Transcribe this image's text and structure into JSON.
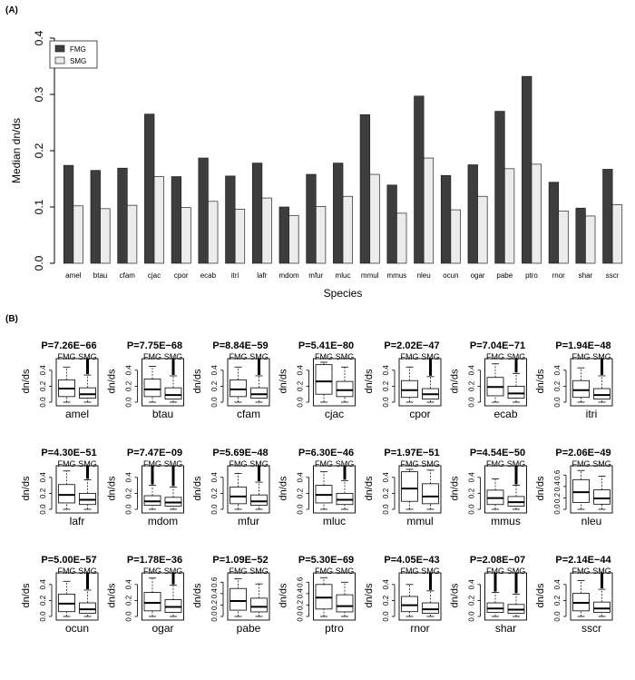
{
  "panel_labels": {
    "a": "(A)",
    "b": "(B)"
  },
  "chart_data": [
    {
      "type": "bar",
      "title": "",
      "xlabel": "Species",
      "ylabel": "Median dn/ds",
      "ylim": [
        0,
        0.4
      ],
      "yticks": [
        "0.0",
        "0.1",
        "0.2",
        "0.3",
        "0.4"
      ],
      "legend_position": "top-left",
      "grid": false,
      "categories": [
        "amel",
        "btau",
        "cfam",
        "cjac",
        "cpor",
        "ecab",
        "itri",
        "lafr",
        "mdom",
        "mfur",
        "mluc",
        "mmul",
        "mmus",
        "nleu",
        "ocun",
        "ogar",
        "pabe",
        "ptro",
        "rnor",
        "shar",
        "sscr"
      ],
      "series": [
        {
          "name": "FMG",
          "color": "#3d3d3d",
          "values": [
            0.174,
            0.165,
            0.169,
            0.265,
            0.154,
            0.187,
            0.155,
            0.178,
            0.1,
            0.158,
            0.178,
            0.264,
            0.139,
            0.297,
            0.156,
            0.175,
            0.27,
            0.332,
            0.144,
            0.098,
            0.167
          ]
        },
        {
          "name": "SMG",
          "color": "#ececec",
          "values": [
            0.102,
            0.097,
            0.103,
            0.154,
            0.099,
            0.11,
            0.096,
            0.116,
            0.085,
            0.101,
            0.119,
            0.158,
            0.089,
            0.187,
            0.095,
            0.119,
            0.168,
            0.176,
            0.093,
            0.084,
            0.104
          ]
        }
      ]
    },
    {
      "type": "boxplot",
      "ylabel": "dn/ds",
      "group_labels": [
        "FMG",
        "SMG"
      ],
      "grid": false,
      "panels": [
        {
          "species": "amel",
          "pvalue": "P=7.26E−66",
          "ylim": [
            0,
            0.5
          ],
          "yticks": [
            "0.0",
            "0.2",
            "0.4"
          ],
          "boxes": [
            {
              "whisker_low": 0.0,
              "q1": 0.07,
              "median": 0.17,
              "q3": 0.28,
              "whisker_high": 0.44,
              "outliers": false
            },
            {
              "whisker_low": 0.0,
              "q1": 0.05,
              "median": 0.1,
              "q3": 0.18,
              "whisker_high": 0.34,
              "outliers": true
            }
          ]
        },
        {
          "species": "btau",
          "pvalue": "P=7.75E−68",
          "ylim": [
            0,
            0.5
          ],
          "yticks": [
            "0.0",
            "0.2",
            "0.4"
          ],
          "boxes": [
            {
              "whisker_low": 0.0,
              "q1": 0.07,
              "median": 0.16,
              "q3": 0.29,
              "whisker_high": 0.45,
              "outliers": false
            },
            {
              "whisker_low": 0.0,
              "q1": 0.04,
              "median": 0.09,
              "q3": 0.18,
              "whisker_high": 0.33,
              "outliers": true
            }
          ]
        },
        {
          "species": "cfam",
          "pvalue": "P=8.84E−59",
          "ylim": [
            0,
            0.5
          ],
          "yticks": [
            "0.0",
            "0.2",
            "0.4"
          ],
          "boxes": [
            {
              "whisker_low": 0.0,
              "q1": 0.07,
              "median": 0.16,
              "q3": 0.28,
              "whisker_high": 0.44,
              "outliers": false
            },
            {
              "whisker_low": 0.0,
              "q1": 0.05,
              "median": 0.1,
              "q3": 0.18,
              "whisker_high": 0.33,
              "outliers": true
            }
          ]
        },
        {
          "species": "cjac",
          "pvalue": "P=5.41E−80",
          "ylim": [
            0,
            0.5
          ],
          "yticks": [
            "0.0",
            "0.2",
            "0.4"
          ],
          "boxes": [
            {
              "whisker_low": 0.0,
              "q1": 0.1,
              "median": 0.26,
              "q3": 0.47,
              "whisker_high": 0.5,
              "outliers": false
            },
            {
              "whisker_low": 0.0,
              "q1": 0.07,
              "median": 0.15,
              "q3": 0.26,
              "whisker_high": 0.44,
              "outliers": false
            }
          ]
        },
        {
          "species": "cpor",
          "pvalue": "P=2.02E−47",
          "ylim": [
            0,
            0.5
          ],
          "yticks": [
            "0.0",
            "0.2",
            "0.4"
          ],
          "boxes": [
            {
              "whisker_low": 0.0,
              "q1": 0.06,
              "median": 0.15,
              "q3": 0.27,
              "whisker_high": 0.44,
              "outliers": false
            },
            {
              "whisker_low": 0.0,
              "q1": 0.04,
              "median": 0.1,
              "q3": 0.17,
              "whisker_high": 0.32,
              "outliers": true
            }
          ]
        },
        {
          "species": "ecab",
          "pvalue": "P=7.04E−71",
          "ylim": [
            0,
            0.5
          ],
          "yticks": [
            "0.0",
            "0.2",
            "0.4"
          ],
          "boxes": [
            {
              "whisker_low": 0.0,
              "q1": 0.08,
              "median": 0.19,
              "q3": 0.31,
              "whisker_high": 0.48,
              "outliers": false
            },
            {
              "whisker_low": 0.0,
              "q1": 0.05,
              "median": 0.11,
              "q3": 0.2,
              "whisker_high": 0.36,
              "outliers": true
            }
          ]
        },
        {
          "species": "itri",
          "pvalue": "P=1.94E−48",
          "ylim": [
            0,
            0.5
          ],
          "yticks": [
            "0.0",
            "0.2",
            "0.4"
          ],
          "boxes": [
            {
              "whisker_low": 0.0,
              "q1": 0.06,
              "median": 0.15,
              "q3": 0.27,
              "whisker_high": 0.43,
              "outliers": false
            },
            {
              "whisker_low": 0.0,
              "q1": 0.04,
              "median": 0.09,
              "q3": 0.17,
              "whisker_high": 0.33,
              "outliers": true
            }
          ]
        },
        {
          "species": "lafr",
          "pvalue": "P=4.30E−51",
          "ylim": [
            0,
            0.5
          ],
          "yticks": [
            "0.0",
            "0.2",
            "0.4"
          ],
          "boxes": [
            {
              "whisker_low": 0.0,
              "q1": 0.08,
              "median": 0.18,
              "q3": 0.31,
              "whisker_high": 0.48,
              "outliers": false
            },
            {
              "whisker_low": 0.0,
              "q1": 0.06,
              "median": 0.12,
              "q3": 0.2,
              "whisker_high": 0.37,
              "outliers": true
            }
          ]
        },
        {
          "species": "mdom",
          "pvalue": "P=7.47E−09",
          "ylim": [
            0,
            0.5
          ],
          "yticks": [
            "0.0",
            "0.2",
            "0.4"
          ],
          "boxes": [
            {
              "whisker_low": 0.0,
              "q1": 0.05,
              "median": 0.1,
              "q3": 0.17,
              "whisker_high": 0.3,
              "outliers": true
            },
            {
              "whisker_low": 0.0,
              "q1": 0.04,
              "median": 0.085,
              "q3": 0.15,
              "whisker_high": 0.28,
              "outliers": true
            }
          ]
        },
        {
          "species": "mfur",
          "pvalue": "P=5.69E−48",
          "ylim": [
            0,
            0.5
          ],
          "yticks": [
            "0.0",
            "0.2",
            "0.4"
          ],
          "boxes": [
            {
              "whisker_low": 0.0,
              "q1": 0.07,
              "median": 0.16,
              "q3": 0.28,
              "whisker_high": 0.45,
              "outliers": false
            },
            {
              "whisker_low": 0.0,
              "q1": 0.05,
              "median": 0.1,
              "q3": 0.18,
              "whisker_high": 0.34,
              "outliers": true
            }
          ]
        },
        {
          "species": "mluc",
          "pvalue": "P=6.30E−46",
          "ylim": [
            0,
            0.5
          ],
          "yticks": [
            "0.0",
            "0.2",
            "0.4"
          ],
          "boxes": [
            {
              "whisker_low": 0.0,
              "q1": 0.08,
              "median": 0.18,
              "q3": 0.3,
              "whisker_high": 0.47,
              "outliers": false
            },
            {
              "whisker_low": 0.0,
              "q1": 0.06,
              "median": 0.12,
              "q3": 0.2,
              "whisker_high": 0.36,
              "outliers": true
            }
          ]
        },
        {
          "species": "mmul",
          "pvalue": "P=1.97E−51",
          "ylim": [
            0,
            0.5
          ],
          "yticks": [
            "0.0",
            "0.2",
            "0.4"
          ],
          "boxes": [
            {
              "whisker_low": 0.0,
              "q1": 0.1,
              "median": 0.26,
              "q3": 0.47,
              "whisker_high": 0.5,
              "outliers": false
            },
            {
              "whisker_low": 0.0,
              "q1": 0.07,
              "median": 0.16,
              "q3": 0.32,
              "whisker_high": 0.49,
              "outliers": false
            }
          ]
        },
        {
          "species": "mmus",
          "pvalue": "P=4.54E−50",
          "ylim": [
            0,
            0.5
          ],
          "yticks": [
            "0.0",
            "0.2",
            "0.4"
          ],
          "boxes": [
            {
              "whisker_low": 0.0,
              "q1": 0.06,
              "median": 0.14,
              "q3": 0.24,
              "whisker_high": 0.38,
              "outliers": false
            },
            {
              "whisker_low": 0.0,
              "q1": 0.04,
              "median": 0.09,
              "q3": 0.16,
              "whisker_high": 0.3,
              "outliers": true
            }
          ]
        },
        {
          "species": "nleu",
          "pvalue": "P=2.06E−49",
          "ylim": [
            0,
            0.7
          ],
          "yticks": [
            "0.0",
            "0.2",
            "0.4",
            "0.6"
          ],
          "boxes": [
            {
              "whisker_low": 0.0,
              "q1": 0.12,
              "median": 0.3,
              "q3": 0.52,
              "whisker_high": 0.68,
              "outliers": false
            },
            {
              "whisker_low": 0.0,
              "q1": 0.09,
              "median": 0.19,
              "q3": 0.34,
              "whisker_high": 0.58,
              "outliers": false
            }
          ]
        },
        {
          "species": "ocun",
          "pvalue": "P=5.00E−57",
          "ylim": [
            0,
            0.5
          ],
          "yticks": [
            "0.0",
            "0.2",
            "0.4"
          ],
          "boxes": [
            {
              "whisker_low": 0.0,
              "q1": 0.06,
              "median": 0.16,
              "q3": 0.28,
              "whisker_high": 0.44,
              "outliers": false
            },
            {
              "whisker_low": 0.0,
              "q1": 0.04,
              "median": 0.09,
              "q3": 0.17,
              "whisker_high": 0.33,
              "outliers": true
            }
          ]
        },
        {
          "species": "ogar",
          "pvalue": "P=1.78E−36",
          "ylim": [
            0,
            0.5
          ],
          "yticks": [
            "0.0",
            "0.2",
            "0.4"
          ],
          "boxes": [
            {
              "whisker_low": 0.0,
              "q1": 0.07,
              "median": 0.17,
              "q3": 0.3,
              "whisker_high": 0.48,
              "outliers": false
            },
            {
              "whisker_low": 0.0,
              "q1": 0.05,
              "median": 0.12,
              "q3": 0.21,
              "whisker_high": 0.39,
              "outliers": true
            }
          ]
        },
        {
          "species": "pabe",
          "pvalue": "P=1.09E−52",
          "ylim": [
            0,
            0.7
          ],
          "yticks": [
            "0.0",
            "0.2",
            "0.4",
            "0.6"
          ],
          "boxes": [
            {
              "whisker_low": 0.0,
              "q1": 0.11,
              "median": 0.27,
              "q3": 0.49,
              "whisker_high": 0.66,
              "outliers": false
            },
            {
              "whisker_low": 0.0,
              "q1": 0.08,
              "median": 0.17,
              "q3": 0.32,
              "whisker_high": 0.57,
              "outliers": false
            }
          ]
        },
        {
          "species": "ptro",
          "pvalue": "P=5.30E−69",
          "ylim": [
            0,
            0.7
          ],
          "yticks": [
            "0.0",
            "0.2",
            "0.4",
            "0.6"
          ],
          "boxes": [
            {
              "whisker_low": 0.0,
              "q1": 0.13,
              "median": 0.33,
              "q3": 0.56,
              "whisker_high": 0.68,
              "outliers": false
            },
            {
              "whisker_low": 0.0,
              "q1": 0.08,
              "median": 0.18,
              "q3": 0.38,
              "whisker_high": 0.6,
              "outliers": false
            }
          ]
        },
        {
          "species": "rnor",
          "pvalue": "P=4.05E−43",
          "ylim": [
            0,
            0.5
          ],
          "yticks": [
            "0.0",
            "0.2",
            "0.4"
          ],
          "boxes": [
            {
              "whisker_low": 0.0,
              "q1": 0.06,
              "median": 0.14,
              "q3": 0.25,
              "whisker_high": 0.4,
              "outliers": false
            },
            {
              "whisker_low": 0.0,
              "q1": 0.04,
              "median": 0.09,
              "q3": 0.17,
              "whisker_high": 0.32,
              "outliers": true
            }
          ]
        },
        {
          "species": "shar",
          "pvalue": "P=2.08E−07",
          "ylim": [
            0,
            0.5
          ],
          "yticks": [
            "0.0",
            "0.2",
            "0.4"
          ],
          "boxes": [
            {
              "whisker_low": 0.0,
              "q1": 0.05,
              "median": 0.1,
              "q3": 0.17,
              "whisker_high": 0.3,
              "outliers": true
            },
            {
              "whisker_low": 0.0,
              "q1": 0.04,
              "median": 0.085,
              "q3": 0.15,
              "whisker_high": 0.28,
              "outliers": true
            }
          ]
        },
        {
          "species": "sscr",
          "pvalue": "P=2.14E−44",
          "ylim": [
            0,
            0.5
          ],
          "yticks": [
            "0.0",
            "0.2",
            "0.4"
          ],
          "boxes": [
            {
              "whisker_low": 0.0,
              "q1": 0.07,
              "median": 0.17,
              "q3": 0.29,
              "whisker_high": 0.45,
              "outliers": false
            },
            {
              "whisker_low": 0.0,
              "q1": 0.05,
              "median": 0.1,
              "q3": 0.18,
              "whisker_high": 0.34,
              "outliers": true
            }
          ]
        }
      ]
    }
  ]
}
